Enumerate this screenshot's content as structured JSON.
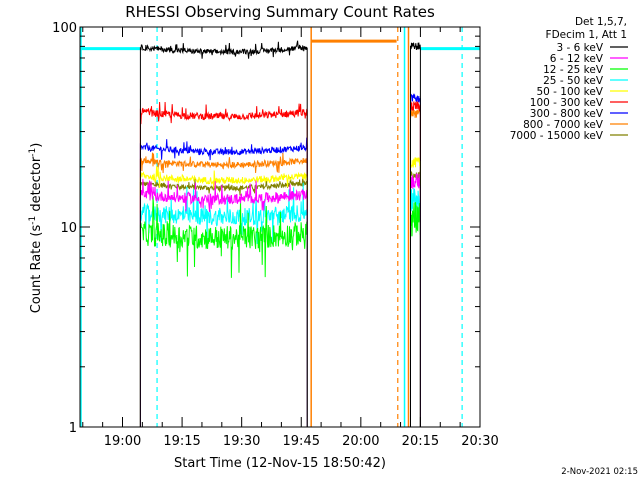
{
  "chart_data": {
    "type": "line",
    "title": "RHESSI Observing Summary Count Rates",
    "xlabel": "Start Time (12-Nov-15 18:50:42)",
    "ylabel_main": "Count Rate (s",
    "ylabel_sup1": "-1",
    "ylabel_mid": " detector",
    "ylabel_sup2": "-1",
    "ylabel_end": ")",
    "yscale": "log",
    "ylim": [
      1,
      100
    ],
    "xlim_minutes": [
      -10.7,
      90
    ],
    "x_ticks": [
      {
        "t": 0,
        "label": "19:00"
      },
      {
        "t": 15,
        "label": "19:15"
      },
      {
        "t": 30,
        "label": "19:30"
      },
      {
        "t": 45,
        "label": "19:45"
      },
      {
        "t": 60,
        "label": "20:00"
      },
      {
        "t": 75,
        "label": "20:15"
      },
      {
        "t": 90,
        "label": "20:30"
      }
    ],
    "y_ticks": [
      {
        "v": 1,
        "label": "1"
      },
      {
        "v": 10,
        "label": "10"
      },
      {
        "v": 100,
        "label": "100"
      }
    ],
    "legend_header": [
      "Det 1,5,7,",
      "FDecim 1, Att 1"
    ],
    "legend_placement": "right, outside plot",
    "series": [
      {
        "name": "3 - 6 keV",
        "color": "#000000",
        "segA": 79,
        "segB": 80,
        "noise": 0.03
      },
      {
        "name": "6 - 12 keV",
        "color": "#ff00ff",
        "segA": 14.5,
        "segB": 17,
        "noise": 0.06
      },
      {
        "name": "12 - 25 keV",
        "color": "#00ff00",
        "segA": 9.3,
        "segB": 11,
        "noise": 0.14
      },
      {
        "name": "25 - 50 keV",
        "color": "#00ffff",
        "segA": 11.8,
        "segB": 13.5,
        "noise": 0.1
      },
      {
        "name": "50 - 100 keV",
        "color": "#ffff00",
        "segA": 18,
        "segB": 21,
        "noise": 0.04
      },
      {
        "name": "100 - 300 keV",
        "color": "#ff0000",
        "segA": 37.5,
        "segB": 40,
        "noise": 0.04
      },
      {
        "name": "300 - 800 keV",
        "color": "#0000ff",
        "segA": 25,
        "segB": 44,
        "noise": 0.035
      },
      {
        "name": "800 - 7000 keV",
        "color": "#ff8000",
        "segA": 21.5,
        "segB": 37,
        "noise": 0.035
      },
      {
        "name": "7000 - 15000 keV",
        "color": "#808000",
        "segA": 16.5,
        "segB": 18,
        "noise": 0.03
      }
    ],
    "segments": {
      "obs1": [
        4.5,
        46.5
      ],
      "obs2": [
        72.5,
        75
      ]
    },
    "annotations": {
      "cyan_flag_level": 78,
      "cyan_flag_spans": [
        [
          -10.7,
          4.5
        ],
        [
          75,
          90.5
        ]
      ],
      "orange_flag_level": 85,
      "orange_flag_span": [
        47.5,
        69
      ],
      "cyan_solid_x": [
        -10.7,
        71
      ],
      "cyan_dashed_x": [
        8.7,
        85.5
      ],
      "orange_solid_x": [
        47.5,
        72
      ],
      "orange_dashed_x": [
        69.3
      ]
    },
    "grid": false
  },
  "footer": {
    "timestamp": "2-Nov-2021 02:15"
  },
  "colors": {
    "cyan": "#00ffff",
    "orange": "#ff8000"
  }
}
